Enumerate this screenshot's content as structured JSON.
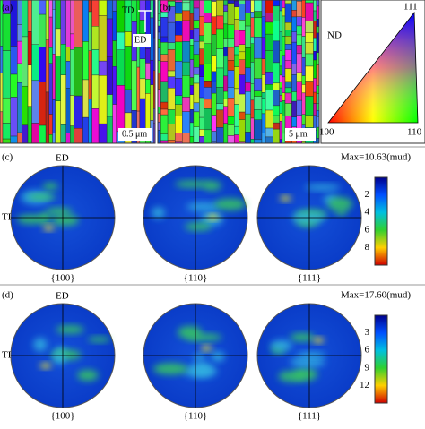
{
  "panels": {
    "a": {
      "label": "(a)",
      "td": "TD",
      "ed": "ED",
      "scale": "0.5 μm"
    },
    "b": {
      "label": "(b)",
      "scale": "5 μm"
    },
    "ipf": {
      "nd": "ND",
      "v111": "111",
      "v100": "100",
      "v110": "110"
    },
    "c": {
      "label": "(c)",
      "ed": "ED",
      "td": "TD",
      "max": "Max=10.63(mud)",
      "figures": [
        "{100}",
        "{110}",
        "{111}"
      ],
      "colorbar": [
        2,
        4,
        6,
        8
      ]
    },
    "d": {
      "label": "(d)",
      "ed": "ED",
      "td": "TD",
      "max": "Max=17.60(mud)",
      "figures": [
        "{100}",
        "{110}",
        "{111}"
      ],
      "colorbar": [
        3,
        6,
        9,
        12
      ]
    }
  }
}
